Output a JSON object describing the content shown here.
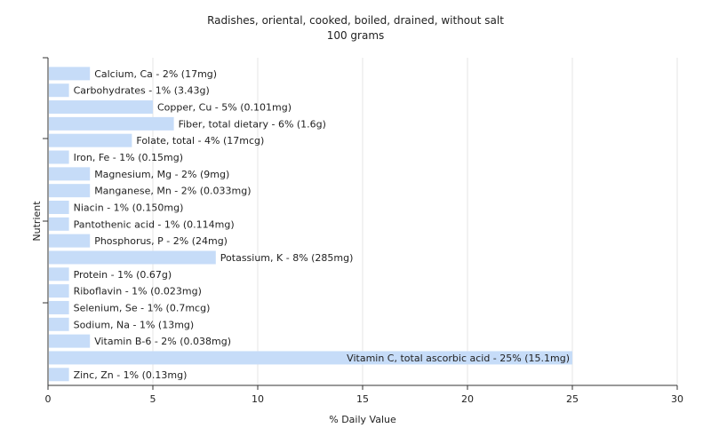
{
  "chart_data": {
    "type": "bar",
    "orientation": "horizontal",
    "title": "Radishes, oriental, cooked, boiled, drained, without salt",
    "subtitle": "100 grams",
    "xlabel": "% Daily Value",
    "ylabel": "Nutrient",
    "xlim": [
      0,
      30
    ],
    "xticks": [
      0,
      5,
      10,
      15,
      20,
      25,
      30
    ],
    "grid": true,
    "bar_color": "#c6dcf8",
    "categories": [
      "Calcium, Ca",
      "Carbohydrates",
      "Copper, Cu",
      "Fiber, total dietary",
      "Folate, total",
      "Iron, Fe",
      "Magnesium, Mg",
      "Manganese, Mn",
      "Niacin",
      "Pantothenic acid",
      "Phosphorus, P",
      "Potassium, K",
      "Protein",
      "Riboflavin",
      "Selenium, Se",
      "Sodium, Na",
      "Vitamin B-6",
      "Vitamin C, total ascorbic acid",
      "Zinc, Zn"
    ],
    "values": [
      2,
      1,
      5,
      6,
      4,
      1,
      2,
      2,
      1,
      1,
      2,
      8,
      1,
      1,
      1,
      1,
      2,
      25,
      1
    ],
    "labels": [
      "Calcium, Ca - 2% (17mg)",
      "Carbohydrates - 1% (3.43g)",
      "Copper, Cu - 5% (0.101mg)",
      "Fiber, total dietary - 6% (1.6g)",
      "Folate, total - 4% (17mcg)",
      "Iron, Fe - 1% (0.15mg)",
      "Magnesium, Mg - 2% (9mg)",
      "Manganese, Mn - 2% (0.033mg)",
      "Niacin - 1% (0.150mg)",
      "Pantothenic acid - 1% (0.114mg)",
      "Phosphorus, P - 2% (24mg)",
      "Potassium, K - 8% (285mg)",
      "Protein - 1% (0.67g)",
      "Riboflavin - 1% (0.023mg)",
      "Selenium, Se - 1% (0.7mcg)",
      "Sodium, Na - 1% (13mg)",
      "Vitamin B-6 - 2% (0.038mg)",
      "Vitamin C, total ascorbic acid - 25% (15.1mg)",
      "Zinc, Zn - 1% (0.13mg)"
    ]
  }
}
